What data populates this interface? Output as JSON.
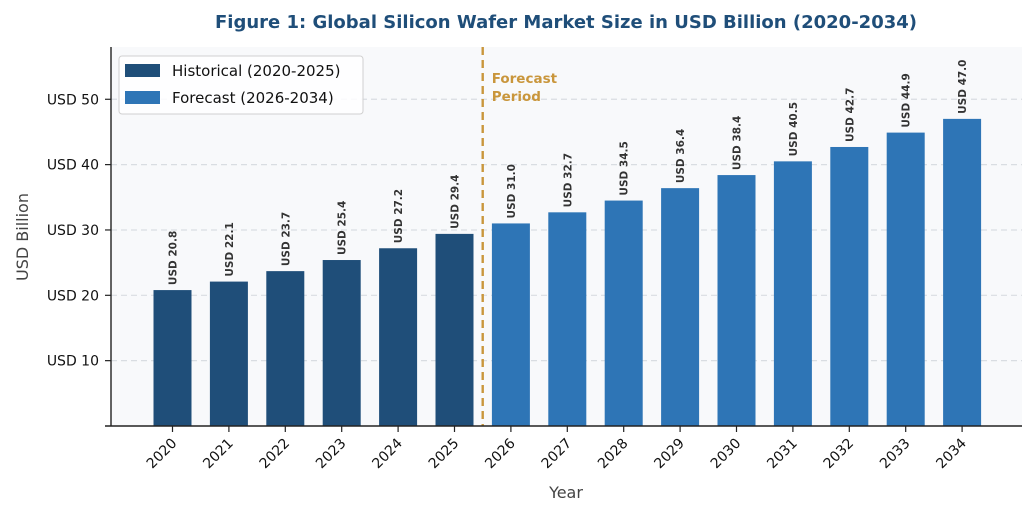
{
  "chart_data": {
    "type": "bar",
    "title": "Figure 1: Global Silicon Wafer Market Size in USD Billion (2020-2034)",
    "xlabel": "Year",
    "ylabel": "USD Billion",
    "categories": [
      "2020",
      "2021",
      "2022",
      "2023",
      "2024",
      "2025",
      "2026",
      "2027",
      "2028",
      "2029",
      "2030",
      "2031",
      "2032",
      "2033",
      "2034"
    ],
    "values": [
      20.8,
      22.1,
      23.7,
      25.4,
      27.2,
      29.4,
      31.0,
      32.7,
      34.5,
      36.4,
      38.4,
      40.5,
      42.7,
      44.9,
      47.0
    ],
    "value_labels": [
      "USD 20.8",
      "USD 22.1",
      "USD 23.7",
      "USD 25.4",
      "USD 27.2",
      "USD 29.4",
      "USD 31.0",
      "USD 32.7",
      "USD 34.5",
      "USD 36.4",
      "USD 38.4",
      "USD 40.5",
      "USD 42.7",
      "USD 44.9",
      "USD 47.0"
    ],
    "series": [
      {
        "name": "Historical (2020-2025)",
        "categories": [
          "2020",
          "2021",
          "2022",
          "2023",
          "2024",
          "2025"
        ],
        "color": "#1f4e79"
      },
      {
        "name": "Forecast (2026-2034)",
        "categories": [
          "2026",
          "2027",
          "2028",
          "2029",
          "2030",
          "2031",
          "2032",
          "2033",
          "2034"
        ],
        "color": "#2e75b6"
      }
    ],
    "yticks": [
      10,
      20,
      30,
      40,
      50
    ],
    "ytick_labels": [
      "USD 10",
      "USD 20",
      "USD 30",
      "USD 40",
      "USD 50"
    ],
    "ylim": [
      0,
      58
    ],
    "grid": "horizontal dashed",
    "legend_position": "top-left",
    "annotation": {
      "lines": [
        "Forecast",
        "Period"
      ],
      "between": [
        "2025",
        "2026"
      ],
      "color": "#c9963c"
    },
    "colors": {
      "title": "#1f4e79",
      "background": "#f8f9fb",
      "grid": "#d9dde2"
    }
  }
}
